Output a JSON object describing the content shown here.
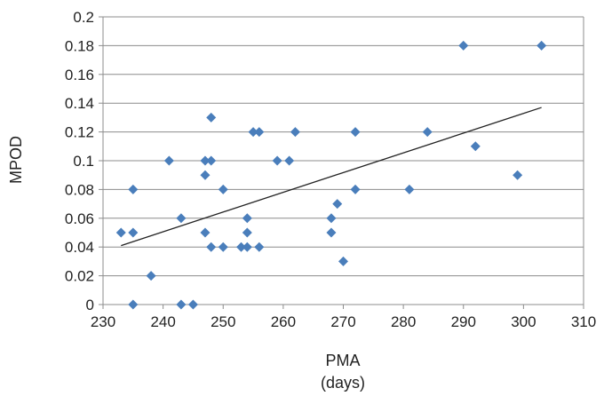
{
  "chart_data": {
    "type": "scatter",
    "title": "",
    "xlabel_line1": "PMA",
    "xlabel_line2": "(days)",
    "ylabel": "MPOD",
    "xlim": [
      230,
      310
    ],
    "ylim": [
      0,
      0.2
    ],
    "x_ticks": [
      "230",
      "240",
      "250",
      "260",
      "270",
      "280",
      "290",
      "300",
      "310"
    ],
    "y_ticks": [
      "0",
      "0.02",
      "0.04",
      "0.06",
      "0.08",
      "0.1",
      "0.12",
      "0.14",
      "0.16",
      "0.18",
      "0.2"
    ],
    "grid": "horizontal",
    "legend": "none",
    "marker_color": "#4a7ebb",
    "trendline_color": "#222222",
    "trendline": {
      "x": [
        233,
        303
      ],
      "y": [
        0.041,
        0.137
      ]
    },
    "points": [
      {
        "x": 233,
        "y": 0.05
      },
      {
        "x": 235,
        "y": 0.08
      },
      {
        "x": 235,
        "y": 0.05
      },
      {
        "x": 235,
        "y": 0.0
      },
      {
        "x": 238,
        "y": 0.02
      },
      {
        "x": 241,
        "y": 0.1
      },
      {
        "x": 243,
        "y": 0.06
      },
      {
        "x": 243,
        "y": 0.0
      },
      {
        "x": 245,
        "y": 0.0
      },
      {
        "x": 247,
        "y": 0.1
      },
      {
        "x": 247,
        "y": 0.09
      },
      {
        "x": 247,
        "y": 0.05
      },
      {
        "x": 248,
        "y": 0.13
      },
      {
        "x": 248,
        "y": 0.1
      },
      {
        "x": 248,
        "y": 0.04
      },
      {
        "x": 250,
        "y": 0.08
      },
      {
        "x": 250,
        "y": 0.04
      },
      {
        "x": 253,
        "y": 0.04
      },
      {
        "x": 254,
        "y": 0.06
      },
      {
        "x": 254,
        "y": 0.05
      },
      {
        "x": 254,
        "y": 0.04
      },
      {
        "x": 255,
        "y": 0.12
      },
      {
        "x": 256,
        "y": 0.12
      },
      {
        "x": 256,
        "y": 0.04
      },
      {
        "x": 259,
        "y": 0.1
      },
      {
        "x": 261,
        "y": 0.1
      },
      {
        "x": 262,
        "y": 0.12
      },
      {
        "x": 268,
        "y": 0.06
      },
      {
        "x": 268,
        "y": 0.05
      },
      {
        "x": 269,
        "y": 0.07
      },
      {
        "x": 270,
        "y": 0.03
      },
      {
        "x": 272,
        "y": 0.12
      },
      {
        "x": 272,
        "y": 0.08
      },
      {
        "x": 281,
        "y": 0.08
      },
      {
        "x": 284,
        "y": 0.12
      },
      {
        "x": 290,
        "y": 0.18
      },
      {
        "x": 292,
        "y": 0.11
      },
      {
        "x": 299,
        "y": 0.09
      },
      {
        "x": 303,
        "y": 0.18
      }
    ]
  }
}
